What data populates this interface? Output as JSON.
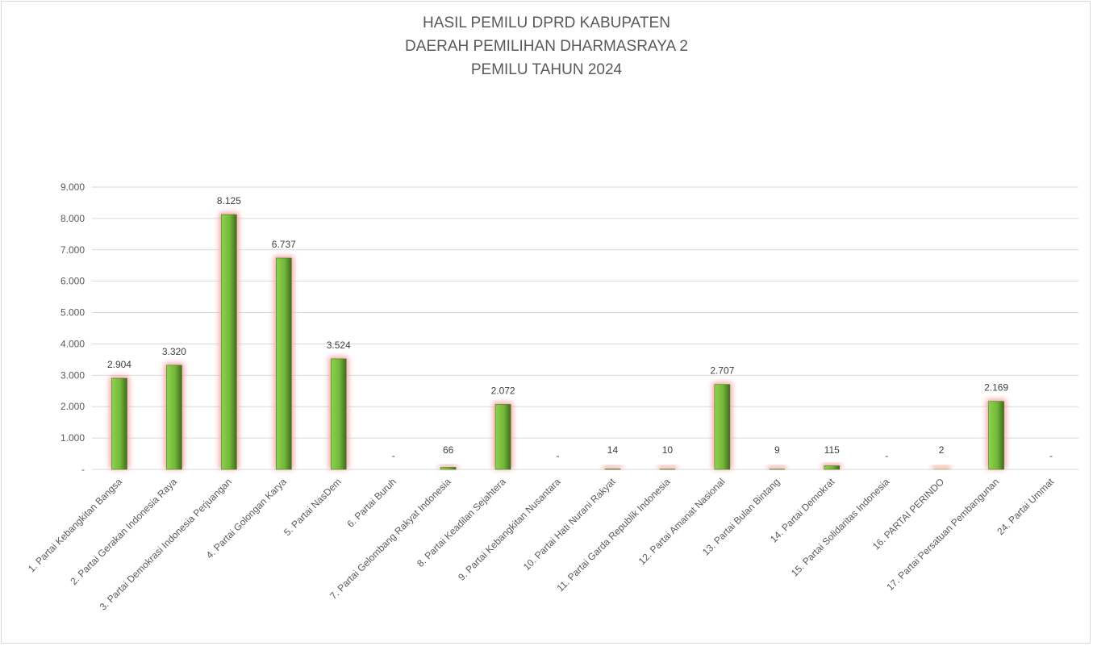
{
  "chart_data": {
    "type": "bar",
    "title": [
      "HASIL PEMILU DPRD KABUPATEN",
      "DAERAH PEMILIHAN DHARMASRAYA 2",
      "PEMILU TAHUN 2024"
    ],
    "xlabel": "",
    "ylabel": "",
    "ylim": [
      0,
      9000
    ],
    "yticks": [
      0,
      1000,
      2000,
      3000,
      4000,
      5000,
      6000,
      7000,
      8000,
      9000
    ],
    "ytick_labels": [
      "-",
      "1.000",
      "2.000",
      "3.000",
      "4.000",
      "5.000",
      "6.000",
      "7.000",
      "8.000",
      "9.000"
    ],
    "grid": true,
    "legend": "none",
    "colors": {
      "bar": "#7cc142",
      "bar_dark": "#4e7f24",
      "glow": "#f4a6a6",
      "grid": "#d9d9d9"
    },
    "categories": [
      "1. Partai Kebangkitan Bangsa",
      "2. Partai Gerakan Indonesia Raya",
      "3. Partai Demokrasi Indonesia Perjuangan",
      "4. Partai Golongan Karya",
      "5. Partai NasDem",
      "6. Partai Buruh",
      "7. Partai Gelombang Rakyat Indonesia",
      "8. Partai Keadilan Sejahtera",
      "9. Partai Kebangkitan Nusantara",
      "10. Partai Hati Nurani Rakyat",
      "11. Partai Garda Republik Indonesia",
      "12. Partai Amanat Nasional",
      "13. Partai Bulan Bintang",
      "14. Partai Demokrat",
      "15. Partai Solidaritas Indonesia",
      "16. PARTAI PERINDO",
      "17. Partai Persatuan Pembangunan",
      "24. Partai Ummat"
    ],
    "values": [
      2904,
      3320,
      8125,
      6737,
      3524,
      0,
      66,
      2072,
      0,
      14,
      10,
      2707,
      9,
      115,
      0,
      2,
      2169,
      0
    ],
    "data_labels": [
      "2.904",
      "3.320",
      "8.125",
      "6.737",
      "3.524",
      "-",
      "66",
      "2.072",
      "-",
      "14",
      "10",
      "2.707",
      "9",
      "115",
      "-",
      "2",
      "2.169",
      "-"
    ]
  }
}
